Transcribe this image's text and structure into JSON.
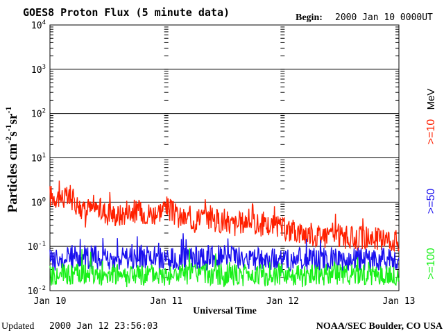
{
  "header": {
    "title": "GOES8 Proton Flux (5 minute data)",
    "begin_label": "Begin:",
    "begin_value": "2000 Jan 10 0000UT"
  },
  "footer": {
    "updated_label": "Updated",
    "updated_value": "2000 Jan 12 23:56:03",
    "credit": "NOAA/SEC Boulder, CO USA"
  },
  "colors": {
    "ge10": "#ff2000",
    "ge50": "#1a10ee",
    "ge100": "#19f019",
    "axis": "#000000"
  },
  "chart_data": {
    "type": "line",
    "title": "GOES8 Proton Flux (5 minute data)",
    "xlabel": "Universal Time",
    "ylabel": "Particles cm-2 s-1 sr-1",
    "yscale": "log",
    "ylim": [
      0.01,
      10000
    ],
    "xlim_days": [
      0,
      3
    ],
    "x_tick_labels": [
      "Jan 10",
      "Jan 11",
      "Jan 12",
      "Jan 13"
    ],
    "y_tick_exponents": [
      "-2",
      "-1",
      "0",
      "1",
      "2",
      "3",
      "4"
    ],
    "grid": true,
    "legend_position": "right",
    "legend_unit": "MeV",
    "series": [
      {
        "name": ">=10",
        "color": "#ff2000",
        "x_days": [
          0.0,
          0.1,
          0.2,
          0.3,
          0.4,
          0.5,
          0.6,
          0.7,
          0.8,
          0.9,
          1.0,
          1.1,
          1.2,
          1.3,
          1.4,
          1.5,
          1.6,
          1.7,
          1.8,
          1.9,
          2.0,
          2.1,
          2.2,
          2.3,
          2.4,
          2.5,
          2.6,
          2.7,
          2.8,
          2.9,
          3.0
        ],
        "values": [
          1.4,
          1.3,
          1.1,
          0.6,
          0.75,
          0.55,
          0.5,
          0.65,
          0.6,
          0.55,
          0.8,
          0.45,
          0.4,
          0.45,
          0.42,
          0.35,
          0.3,
          0.4,
          0.3,
          0.3,
          0.25,
          0.22,
          0.2,
          0.18,
          0.2,
          0.17,
          0.15,
          0.16,
          0.15,
          0.15,
          0.13
        ]
      },
      {
        "name": ">=50",
        "color": "#1a10ee",
        "x_days": [
          0.0,
          0.25,
          0.5,
          0.75,
          1.0,
          1.25,
          1.5,
          1.75,
          2.0,
          2.25,
          2.5,
          2.75,
          3.0
        ],
        "values": [
          0.05,
          0.06,
          0.05,
          0.06,
          0.05,
          0.05,
          0.06,
          0.05,
          0.05,
          0.05,
          0.05,
          0.05,
          0.05
        ]
      },
      {
        "name": ">=100",
        "color": "#19f019",
        "x_days": [
          0.0,
          0.25,
          0.5,
          0.75,
          1.0,
          1.25,
          1.5,
          1.75,
          2.0,
          2.25,
          2.5,
          2.75,
          3.0
        ],
        "values": [
          0.022,
          0.024,
          0.022,
          0.023,
          0.022,
          0.024,
          0.023,
          0.022,
          0.023,
          0.022,
          0.023,
          0.022,
          0.022
        ]
      }
    ]
  }
}
